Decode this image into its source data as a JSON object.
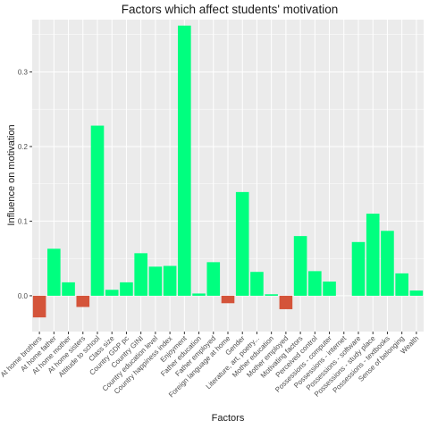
{
  "chart_data": {
    "type": "bar",
    "title": "Factors which affect students' motivation",
    "xlabel": "Factors",
    "ylabel": "Influence on motivation",
    "ylim": [
      -0.048,
      0.37
    ],
    "yticks": [
      0.0,
      0.1,
      0.2,
      0.3
    ],
    "ytick_labels": [
      "0.0",
      "0.1",
      "0.2",
      "0.3"
    ],
    "grid": true,
    "legend": "none",
    "colors": {
      "positive": "#00ff7f",
      "negative": "#d4543a",
      "panel": "#ebebeb",
      "grid": "#ffffff"
    },
    "categories": [
      "At home brothers",
      "At home father",
      "At home mother",
      "At home sisters",
      "Attitude to school",
      "Class size",
      "Country GDP pc",
      "Country GINI",
      "Country education level",
      "Country happiness index",
      "Enjoyment",
      "Father education",
      "Father employed",
      "Foreign language at home",
      "Gender",
      "Literature, art, poetry...",
      "Mother education",
      "Mother employed",
      "Motivating factors",
      "Perceived control",
      "Possessions - computer",
      "Possessions - internet",
      "Possessions - software",
      "Possessions - study place",
      "Possessions - textbooks",
      "Sense of belonging",
      "Wealth"
    ],
    "values": [
      -0.029,
      0.063,
      0.018,
      -0.015,
      0.228,
      0.008,
      0.018,
      0.057,
      0.039,
      0.04,
      0.362,
      0.003,
      0.045,
      -0.01,
      0.139,
      0.032,
      0.002,
      -0.018,
      0.08,
      0.033,
      0.019,
      0.0,
      0.072,
      0.11,
      0.087,
      0.03,
      0.007
    ]
  }
}
